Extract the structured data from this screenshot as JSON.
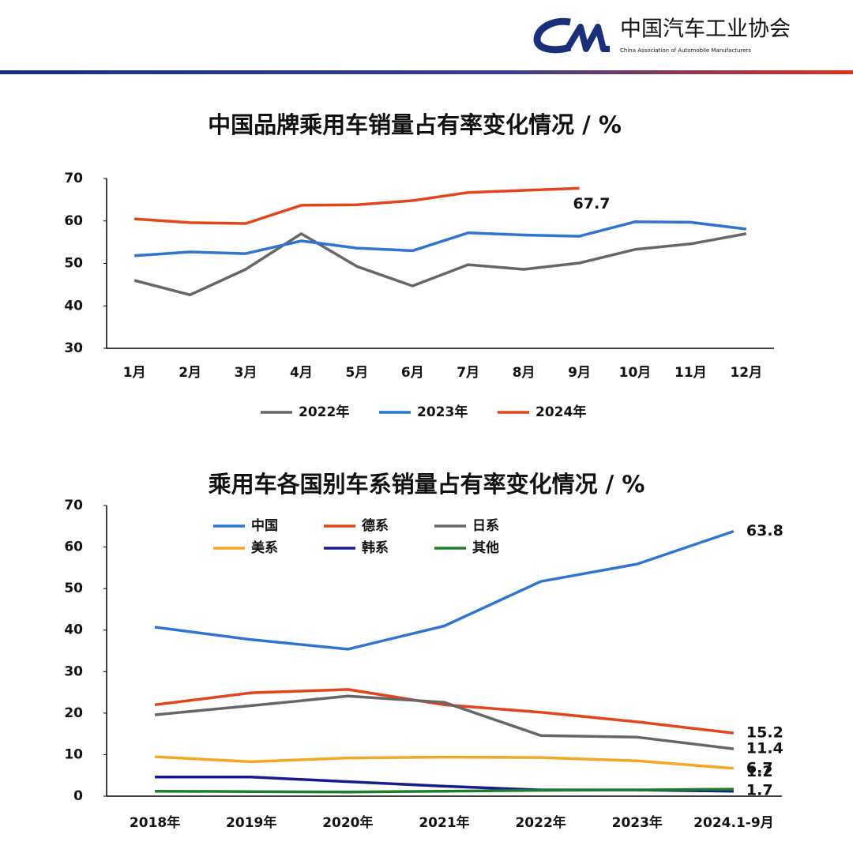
{
  "header": {
    "org": "中国汽车工业协会",
    "org_en": "China Association of Automobile Manufacturers"
  },
  "chart_data": [
    {
      "type": "line",
      "title": "中国品牌乘用车销量占有率变化情况 / %",
      "categories": [
        "1月",
        "2月",
        "3月",
        "4月",
        "5月",
        "6月",
        "7月",
        "8月",
        "9月",
        "10月",
        "11月",
        "12月"
      ],
      "ylim": [
        30,
        70
      ],
      "yticks": [
        30,
        40,
        50,
        60,
        70
      ],
      "legend": "bottom",
      "series": [
        {
          "name": "2022年",
          "color": "#666666",
          "values": [
            46,
            42.6,
            48.6,
            57,
            49.3,
            44.7,
            49.7,
            48.6,
            50.1,
            53.3,
            54.6,
            57
          ]
        },
        {
          "name": "2023年",
          "color": "#2f74d0",
          "values": [
            51.8,
            52.7,
            52.3,
            55.3,
            53.6,
            53,
            57.2,
            56.7,
            56.4,
            59.8,
            59.7,
            58.1
          ]
        },
        {
          "name": "2024年",
          "color": "#e5431c",
          "values": [
            60.5,
            59.6,
            59.4,
            63.7,
            63.8,
            64.8,
            66.7,
            67.2,
            67.7,
            null,
            null,
            null
          ],
          "value_labels": [
            null,
            null,
            null,
            null,
            null,
            null,
            null,
            null,
            "67.7",
            null,
            null,
            null
          ]
        }
      ]
    },
    {
      "type": "line",
      "title": "乘用车各国别车系销量占有率变化情况 / %",
      "categories": [
        "2018年",
        "2019年",
        "2020年",
        "2021年",
        "2022年",
        "2023年",
        "2024.1-9月"
      ],
      "ylim": [
        0,
        70
      ],
      "yticks": [
        0,
        10,
        20,
        30,
        40,
        50,
        60,
        70
      ],
      "legend": "top-left",
      "series": [
        {
          "name": "中国",
          "color": "#2f74d0",
          "values": [
            40.7,
            37.7,
            35.4,
            41,
            51.7,
            55.9,
            63.8
          ],
          "value_labels": [
            null,
            null,
            null,
            null,
            null,
            null,
            "63.8"
          ]
        },
        {
          "name": "德系",
          "color": "#e5431c",
          "values": [
            22,
            24.9,
            25.7,
            22,
            20.2,
            17.9,
            15.2
          ],
          "value_labels": [
            null,
            null,
            null,
            null,
            null,
            null,
            "15.2"
          ]
        },
        {
          "name": "日系",
          "color": "#666666",
          "values": [
            19.6,
            21.8,
            24.1,
            22.6,
            14.6,
            14.2,
            11.4
          ],
          "value_labels": [
            null,
            null,
            null,
            null,
            null,
            null,
            "11.4"
          ]
        },
        {
          "name": "美系",
          "color": "#f5a623",
          "values": [
            9.5,
            8.3,
            9.2,
            9.4,
            9.3,
            8.5,
            6.7
          ],
          "value_labels": [
            null,
            null,
            null,
            null,
            null,
            null,
            "6.7"
          ]
        },
        {
          "name": "韩系",
          "color": "#1a1a8c",
          "values": [
            4.6,
            4.6,
            3.5,
            2.4,
            1.5,
            1.5,
            1.2
          ],
          "value_labels": [
            null,
            null,
            null,
            null,
            null,
            null,
            "1.2"
          ]
        },
        {
          "name": "其他",
          "color": "#1e7d2a",
          "values": [
            1.2,
            1.1,
            1,
            1.2,
            1.4,
            1.5,
            1.7
          ],
          "value_labels": [
            null,
            null,
            null,
            null,
            null,
            null,
            "1.7"
          ]
        }
      ]
    }
  ]
}
